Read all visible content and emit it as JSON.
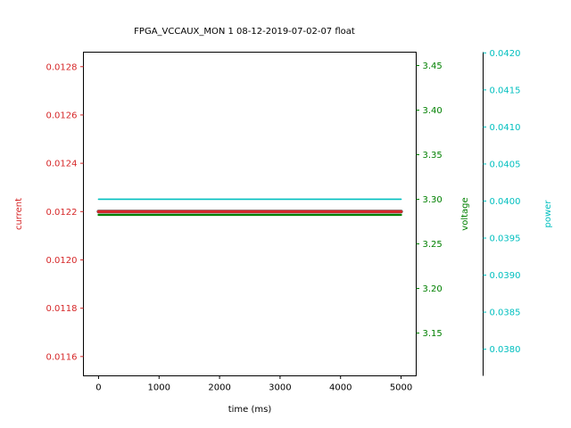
{
  "chart_data": {
    "type": "line",
    "title": "FPGA_VCCAUX_MON   1   08-12-2019-07-02-07   float",
    "xlabel": "time (ms)",
    "xlim": [
      -250,
      5250
    ],
    "x_ticks": [
      0,
      1000,
      2000,
      3000,
      4000,
      5000
    ],
    "x_tick_labels": [
      "0",
      "1000",
      "2000",
      "3000",
      "4000",
      "5000"
    ],
    "grid": false,
    "axes": [
      {
        "key": "current",
        "label": "current",
        "color": "#d62728",
        "ylim": [
          0.01152,
          0.01286
        ],
        "ticks": [
          0.0116,
          0.0118,
          0.012,
          0.0122,
          0.0124,
          0.0126,
          0.0128
        ],
        "tick_labels": [
          "0.0116",
          "0.0118",
          "0.0120",
          "0.0122",
          "0.0124",
          "0.0126",
          "0.0128"
        ]
      },
      {
        "key": "voltage",
        "label": "voltage",
        "color": "#008000",
        "ylim": [
          3.102,
          3.465
        ],
        "ticks": [
          3.15,
          3.2,
          3.25,
          3.3,
          3.35,
          3.4,
          3.45
        ],
        "tick_labels": [
          "3.15",
          "3.20",
          "3.25",
          "3.30",
          "3.35",
          "3.40",
          "3.45"
        ]
      },
      {
        "key": "power",
        "label": "power",
        "color": "#00bfbf",
        "ylim": [
          0.03764,
          0.04201
        ],
        "ticks": [
          0.038,
          0.0385,
          0.039,
          0.0395,
          0.04,
          0.0405,
          0.041,
          0.0415,
          0.042
        ],
        "tick_labels": [
          "0.0380",
          "0.0385",
          "0.0390",
          "0.0395",
          "0.0400",
          "0.0405",
          "0.0410",
          "0.0415",
          "0.0420"
        ]
      }
    ],
    "series": [
      {
        "axis": "current",
        "color": "#d62728",
        "x": [
          0,
          5000
        ],
        "y": [
          0.0122,
          0.0122
        ]
      },
      {
        "axis": "voltage",
        "color": "#008000",
        "x": [
          0,
          5000
        ],
        "y": [
          3.2825,
          3.2825
        ]
      },
      {
        "axis": "power",
        "color": "#00bfbf",
        "x": [
          0,
          5000
        ],
        "y": [
          0.040025,
          0.040025
        ]
      }
    ]
  }
}
